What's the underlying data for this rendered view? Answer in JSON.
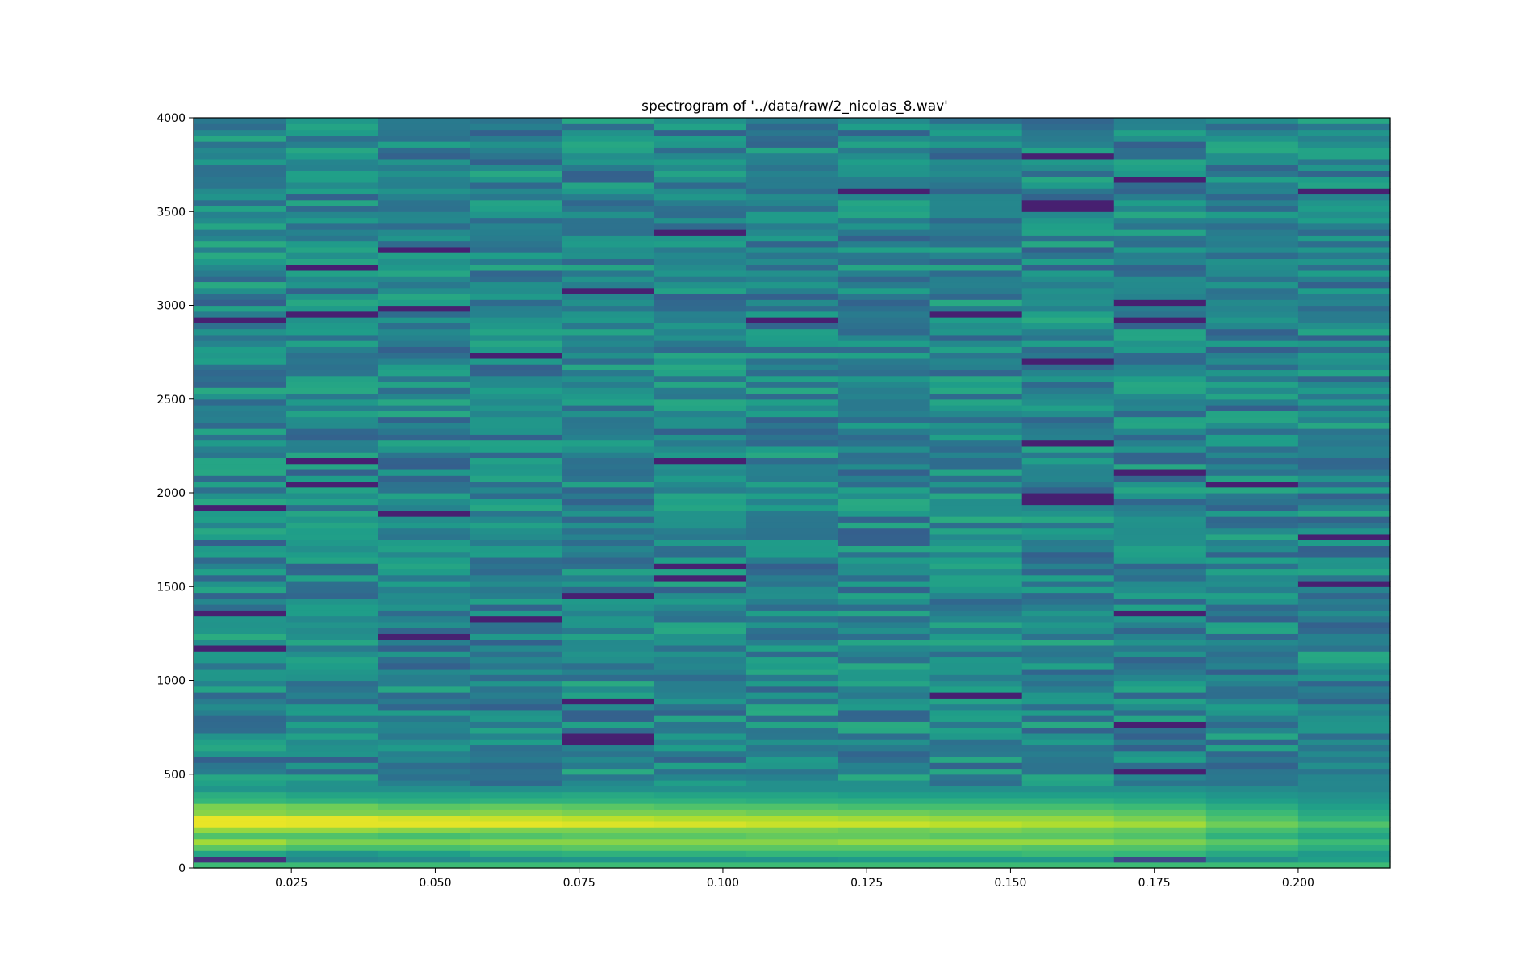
{
  "chart_data": {
    "type": "heatmap",
    "title": "spectrogram of '../data/raw/2_nicolas_8.wav'",
    "xlabel": "",
    "ylabel": "",
    "x_ticks": [
      0.025,
      0.05,
      0.075,
      0.1,
      0.125,
      0.15,
      0.175,
      0.2
    ],
    "x_tick_labels": [
      "0.025",
      "0.050",
      "0.075",
      "0.100",
      "0.125",
      "0.150",
      "0.175",
      "0.200"
    ],
    "y_ticks": [
      0,
      500,
      1000,
      1500,
      2000,
      2500,
      3000,
      3500,
      4000
    ],
    "y_tick_labels": [
      "0",
      "500",
      "1000",
      "1500",
      "2000",
      "2500",
      "3000",
      "3500",
      "4000"
    ],
    "xlim": [
      0.008,
      0.216
    ],
    "ylim": [
      0,
      4000
    ],
    "colormap": "viridis",
    "time_bins": [
      0.016,
      0.032,
      0.048,
      0.064,
      0.08,
      0.096,
      0.112,
      0.128,
      0.144,
      0.16,
      0.176,
      0.192,
      0.208
    ],
    "freq_bin_hz": 31.25,
    "freq_bin_count": 128,
    "low_band_intensity": [
      [
        0.68,
        0.14,
        0.58,
        0.74,
        0.86,
        0.72,
        0.84,
        0.97,
        0.97,
        0.82,
        0.8,
        0.66,
        0.62,
        0.52
      ],
      [
        0.68,
        0.46,
        0.52,
        0.7,
        0.8,
        0.72,
        0.84,
        0.96,
        0.96,
        0.8,
        0.78,
        0.64,
        0.58,
        0.5
      ],
      [
        0.68,
        0.48,
        0.56,
        0.7,
        0.8,
        0.7,
        0.82,
        0.96,
        0.94,
        0.8,
        0.74,
        0.62,
        0.58,
        0.5
      ],
      [
        0.68,
        0.5,
        0.62,
        0.72,
        0.82,
        0.72,
        0.8,
        0.96,
        0.92,
        0.82,
        0.76,
        0.64,
        0.58,
        0.5
      ],
      [
        0.68,
        0.52,
        0.64,
        0.74,
        0.82,
        0.74,
        0.8,
        0.95,
        0.9,
        0.8,
        0.74,
        0.64,
        0.6,
        0.5
      ],
      [
        0.68,
        0.52,
        0.64,
        0.74,
        0.82,
        0.74,
        0.8,
        0.94,
        0.88,
        0.8,
        0.72,
        0.64,
        0.58,
        0.5
      ],
      [
        0.68,
        0.52,
        0.66,
        0.74,
        0.82,
        0.76,
        0.8,
        0.92,
        0.88,
        0.78,
        0.72,
        0.62,
        0.58,
        0.5
      ],
      [
        0.68,
        0.54,
        0.66,
        0.74,
        0.84,
        0.76,
        0.78,
        0.92,
        0.86,
        0.78,
        0.7,
        0.62,
        0.56,
        0.5
      ],
      [
        0.68,
        0.54,
        0.66,
        0.74,
        0.84,
        0.74,
        0.8,
        0.9,
        0.84,
        0.76,
        0.7,
        0.62,
        0.56,
        0.5
      ],
      [
        0.68,
        0.54,
        0.68,
        0.72,
        0.84,
        0.74,
        0.78,
        0.88,
        0.84,
        0.76,
        0.7,
        0.62,
        0.56,
        0.5
      ],
      [
        0.68,
        0.22,
        0.66,
        0.72,
        0.8,
        0.72,
        0.76,
        0.86,
        0.8,
        0.74,
        0.68,
        0.6,
        0.56,
        0.5
      ],
      [
        0.68,
        0.5,
        0.6,
        0.68,
        0.74,
        0.64,
        0.7,
        0.78,
        0.72,
        0.68,
        0.62,
        0.56,
        0.52,
        0.48
      ],
      [
        0.68,
        0.56,
        0.54,
        0.62,
        0.68,
        0.58,
        0.64,
        0.72,
        0.64,
        0.6,
        0.56,
        0.52,
        0.5,
        0.46
      ]
    ]
  }
}
